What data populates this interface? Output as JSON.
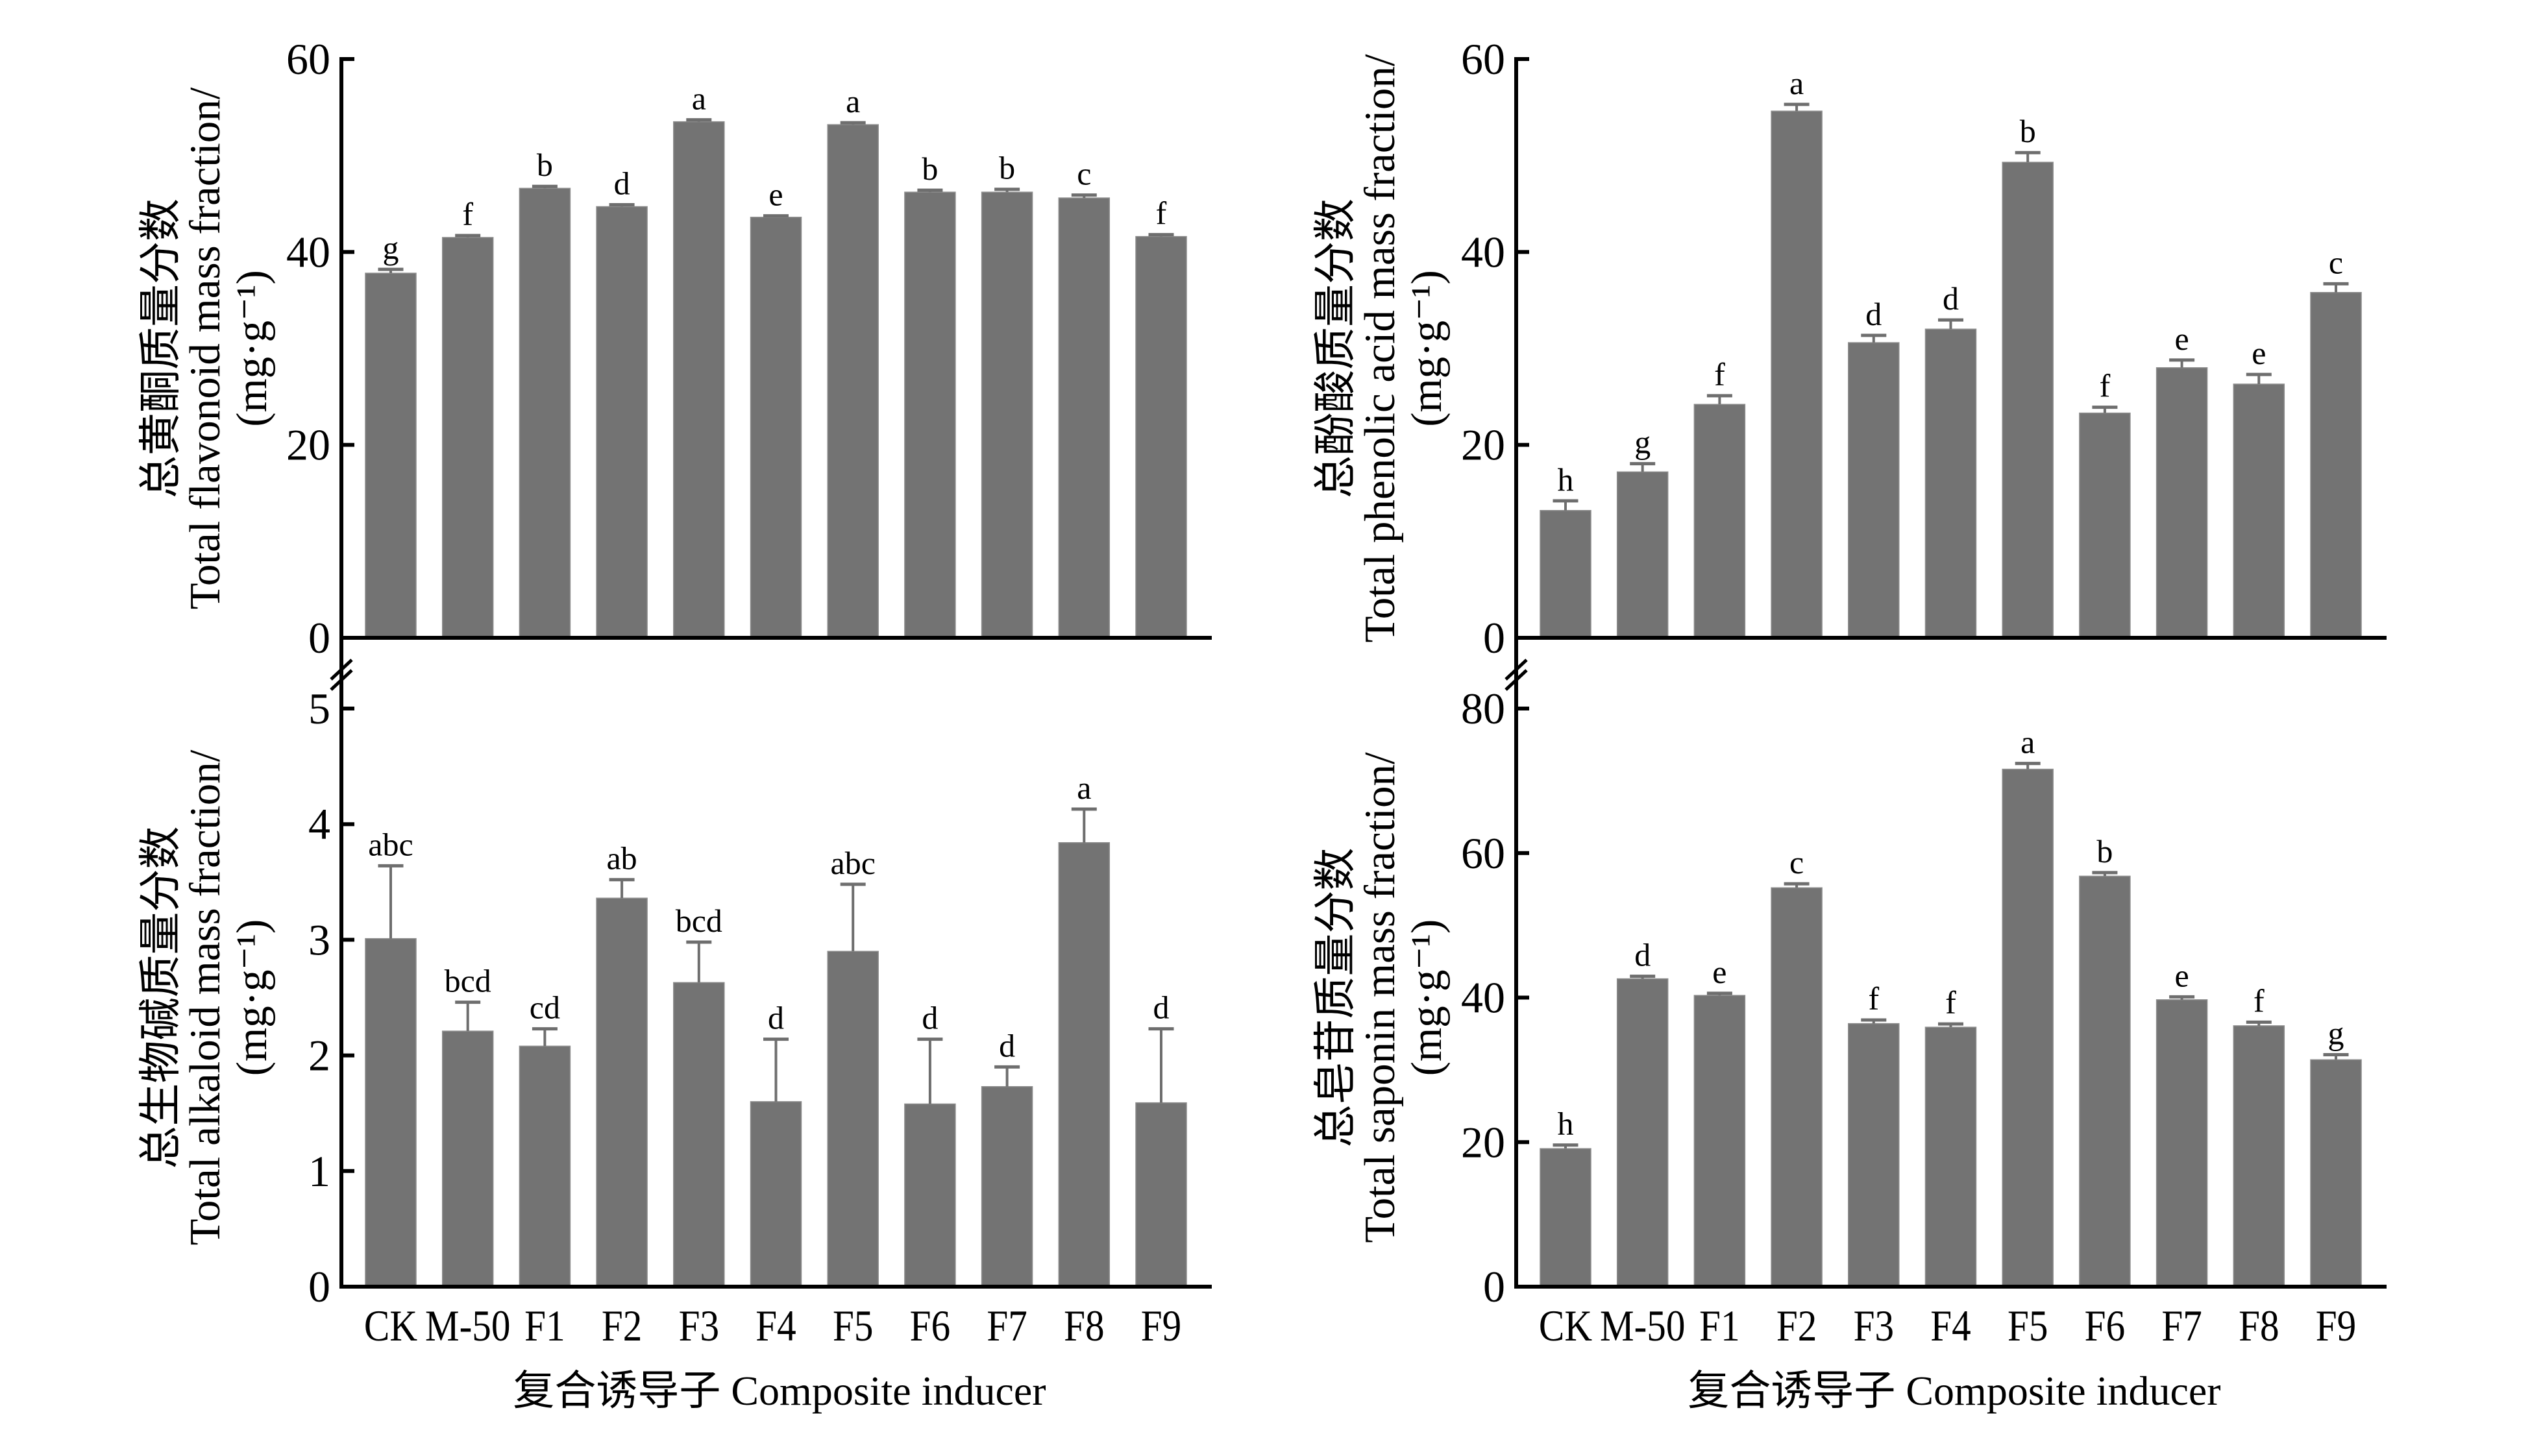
{
  "chart_data": [
    {
      "panel": "top-left",
      "type": "bar",
      "title": "",
      "ylabel": [
        "总黄酮质量分数",
        "Total flavonoid mass fraction/",
        "(mg·g⁻¹)"
      ],
      "xlabel": "",
      "categories": [
        "CK",
        "M-50",
        "F1",
        "F2",
        "F3",
        "F4",
        "F5",
        "F6",
        "F7",
        "F8",
        "F9"
      ],
      "show_xtick_labels": false,
      "values": [
        37.8,
        41.5,
        46.6,
        44.7,
        53.5,
        43.6,
        53.2,
        46.2,
        46.2,
        45.6,
        41.6
      ],
      "errors": [
        0.4,
        0.2,
        0.2,
        0.2,
        0.2,
        0.15,
        0.2,
        0.2,
        0.3,
        0.3,
        0.2
      ],
      "letters": [
        "g",
        "f",
        "b",
        "d",
        "a",
        "e",
        "a",
        "b",
        "b",
        "c",
        "f"
      ],
      "ylim": [
        0,
        60
      ],
      "yticks": [
        0,
        20,
        40,
        60
      ],
      "y_axis_break_above": false,
      "grid": false,
      "legend": "none"
    },
    {
      "panel": "top-right",
      "type": "bar",
      "title": "",
      "ylabel": [
        "总酚酸质量分数",
        "Total phenolic acid mass fraction/",
        "(mg·g⁻¹)"
      ],
      "xlabel": "",
      "categories": [
        "CK",
        "M-50",
        "F1",
        "F2",
        "F3",
        "F4",
        "F5",
        "F6",
        "F7",
        "F8",
        "F9"
      ],
      "show_xtick_labels": false,
      "values": [
        13.2,
        17.2,
        24.2,
        54.6,
        30.6,
        32.0,
        49.3,
        23.3,
        28.0,
        26.3,
        35.8
      ],
      "errors": [
        1.0,
        0.85,
        0.9,
        0.7,
        0.75,
        0.95,
        1.0,
        0.6,
        0.8,
        1.0,
        0.9
      ],
      "letters": [
        "h",
        "g",
        "f",
        "a",
        "d",
        "d",
        "b",
        "f",
        "e",
        "e",
        "c"
      ],
      "ylim": [
        0,
        60
      ],
      "yticks": [
        0,
        20,
        40,
        60
      ],
      "y_axis_break_above": false,
      "grid": false,
      "legend": "none"
    },
    {
      "panel": "bottom-left",
      "type": "bar",
      "title": "",
      "ylabel": [
        "总生物碱质量分数",
        "Total alkaloid mass fraction/",
        "(mg·g⁻¹)"
      ],
      "xlabel": "复合诱导子 Composite inducer",
      "categories": [
        "CK",
        "M-50",
        "F1",
        "F2",
        "F3",
        "F4",
        "F5",
        "F6",
        "F7",
        "F8",
        "F9"
      ],
      "show_xtick_labels": true,
      "values": [
        3.01,
        2.21,
        2.08,
        3.36,
        2.63,
        1.6,
        2.9,
        1.58,
        1.73,
        3.84,
        1.59
      ],
      "errors": [
        0.63,
        0.25,
        0.15,
        0.16,
        0.35,
        0.54,
        0.58,
        0.56,
        0.17,
        0.29,
        0.64
      ],
      "letters": [
        "abc",
        "bcd",
        "cd",
        "ab",
        "bcd",
        "d",
        "abc",
        "d",
        "d",
        "a",
        "d"
      ],
      "ylim": [
        0,
        5
      ],
      "yticks": [
        0,
        1,
        2,
        3,
        4,
        5
      ],
      "y_axis_break_above": true,
      "grid": false,
      "legend": "none"
    },
    {
      "panel": "bottom-right",
      "type": "bar",
      "title": "",
      "ylabel": [
        "总皂苷质量分数",
        "Total saponin mass fraction/",
        "(mg·g⁻¹)"
      ],
      "xlabel": "复合诱导子 Composite inducer",
      "categories": [
        "CK",
        "M-50",
        "F1",
        "F2",
        "F3",
        "F4",
        "F5",
        "F6",
        "F7",
        "F8",
        "F9"
      ],
      "show_xtick_labels": true,
      "values": [
        19.1,
        42.6,
        40.3,
        55.2,
        36.4,
        35.9,
        71.6,
        56.8,
        39.7,
        36.1,
        31.4
      ],
      "errors": [
        0.5,
        0.35,
        0.3,
        0.55,
        0.5,
        0.45,
        0.8,
        0.5,
        0.4,
        0.5,
        0.7
      ],
      "letters": [
        "h",
        "d",
        "e",
        "c",
        "f",
        "f",
        "a",
        "b",
        "e",
        "f",
        "g"
      ],
      "ylim": [
        0,
        80
      ],
      "yticks": [
        0,
        20,
        40,
        60,
        80
      ],
      "y_axis_break_above": true,
      "grid": false,
      "legend": "none"
    }
  ],
  "colors": {
    "bar_fill": "#737373",
    "error_bar": "#6e6e6e",
    "axis": "#000000",
    "background": "#ffffff"
  }
}
